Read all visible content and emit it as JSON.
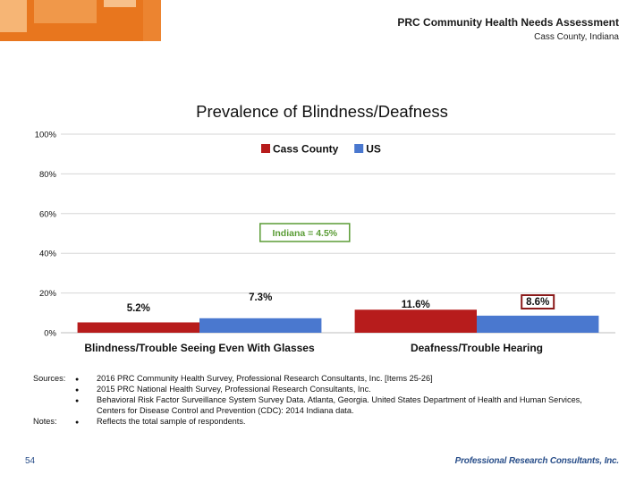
{
  "header": {
    "title": "PRC Community Health Needs Assessment",
    "subtitle": "Cass County, Indiana"
  },
  "chart_data": {
    "type": "bar",
    "title": "Prevalence of Blindness/Deafness",
    "categories": [
      "Blindness/Trouble Seeing Even With Glasses",
      "Deafness/Trouble Hearing"
    ],
    "series": [
      {
        "name": "Cass County",
        "values": [
          5.2,
          11.6
        ],
        "labels": [
          "5.2%",
          "11.6%"
        ],
        "color": "#b71c1c"
      },
      {
        "name": "US",
        "values": [
          7.3,
          8.6
        ],
        "labels": [
          "7.3%",
          "8.6%"
        ],
        "color": "#4a78cf"
      }
    ],
    "ylim": [
      0,
      100
    ],
    "yticks": [
      "0%",
      "20%",
      "40%",
      "60%",
      "80%",
      "100%"
    ],
    "ytick_values": [
      0,
      20,
      40,
      60,
      80,
      100
    ],
    "grid": true,
    "legend": "top-right",
    "annotations": [
      {
        "text": "Indiana = 4.5%",
        "applies_to": "Blindness/Trouble Seeing Even With Glasses",
        "color": "#5a9c35"
      }
    ],
    "highlighted_label": "8.6%",
    "highlight_color": "#8b1a1a"
  },
  "notes": {
    "sources_label": "Sources:",
    "notes_label": "Notes:",
    "sources": [
      "2016 PRC Community Health Survey, Professional Research Consultants, Inc. [Items 25-26]",
      "2015 PRC National Health Survey, Professional Research Consultants, Inc.",
      "Behavioral Risk Factor Surveillance System Survey Data. Atlanta, Georgia. United States Department of Health and Human Services, Centers for Disease Control and Prevention (CDC): 2014 Indiana data."
    ],
    "note_items": [
      "Reflects the total sample of respondents."
    ]
  },
  "footer": {
    "page_number": "54",
    "logo_text": "Professional Research Consultants, Inc."
  }
}
